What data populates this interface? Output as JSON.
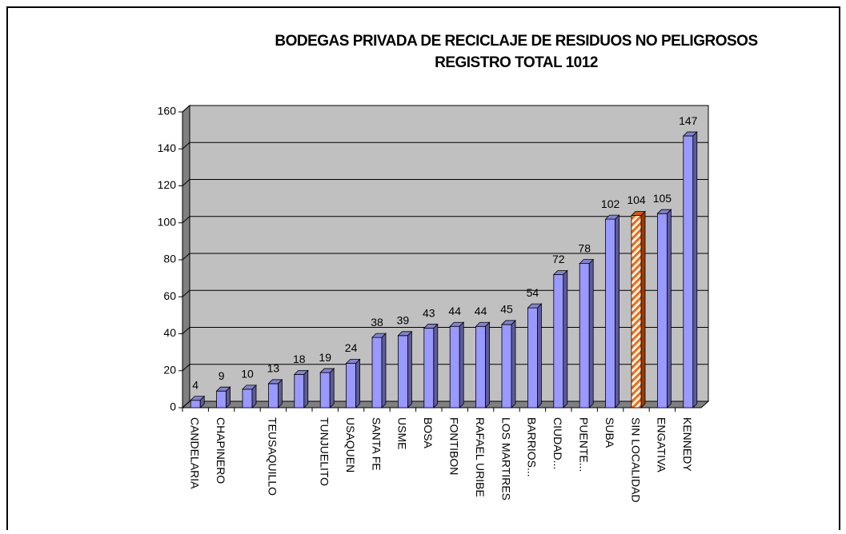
{
  "chart_data": {
    "type": "bar3d",
    "title": "BODEGAS PRIVADA DE RECICLAJE DE RESIDUOS NO PELIGROSOS",
    "subtitle": "REGISTRO TOTAL 1012",
    "categories": [
      "CANDELARIA",
      "CHAPINERO",
      null,
      "TEUSAQUILLO",
      null,
      "TUNJUELITO",
      "USAQUEN",
      "SANTA FE",
      "USME",
      "BOSA",
      "FONTIBON",
      "RAFAEL URIBE",
      "LOS MARTIRES",
      "BARRIOS...",
      "CIUDAD...",
      "PUENTE...",
      "SUBA",
      "SIN LOCALIDAD",
      "ENGATIVA",
      "KENNEDY"
    ],
    "values": [
      4,
      9,
      10,
      13,
      18,
      19,
      24,
      38,
      39,
      43,
      44,
      44,
      45,
      54,
      72,
      78,
      102,
      104,
      105,
      147
    ],
    "colors": [
      "#9999ff",
      "#9999ff",
      "#9999ff",
      "#9999ff",
      "#9999ff",
      "#9999ff",
      "#9999ff",
      "#9999ff",
      "#9999ff",
      "#9999ff",
      "#9999ff",
      "#9999ff",
      "#9999ff",
      "#9999ff",
      "#9999ff",
      "#9999ff",
      "#9999ff",
      "#ff6600",
      "#9999ff",
      "#9999ff"
    ],
    "hatched": [
      false,
      false,
      false,
      false,
      false,
      false,
      false,
      false,
      false,
      false,
      false,
      false,
      false,
      false,
      false,
      false,
      false,
      true,
      false,
      false
    ],
    "ylim": [
      0,
      160
    ],
    "yticks": [
      0,
      20,
      40,
      60,
      80,
      100,
      120,
      140,
      160
    ],
    "grid": true
  }
}
